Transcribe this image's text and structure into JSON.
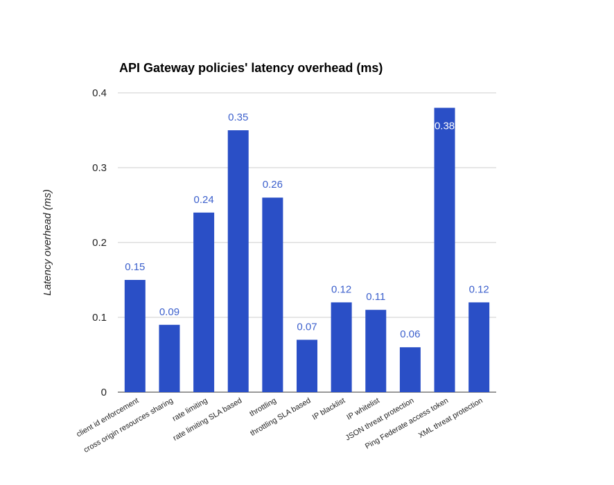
{
  "chart_data": {
    "type": "bar",
    "title": "API Gateway policies' latency overhead (ms)",
    "xlabel": "",
    "ylabel": "Latency overhead (ms)",
    "ylim": [
      0,
      0.4
    ],
    "yticks": [
      0,
      0.1,
      0.2,
      0.3,
      0.4
    ],
    "ytick_labels": [
      "0",
      "0.1",
      "0.2",
      "0.3",
      "0.4"
    ],
    "grid": true,
    "legend": "none",
    "bar_color": "#2a4fc6",
    "label_color": "#3b5fcc",
    "categories": [
      "client id enforcement",
      "cross origin resources sharing",
      "rate limiting",
      "rate limiting SLA based",
      "throttling",
      "throttling SLA based",
      "IP blacklist",
      "IP whitelist",
      "JSON threat protection",
      "Ping Federate access token",
      "XML threat protection"
    ],
    "values": [
      0.15,
      0.09,
      0.24,
      0.35,
      0.26,
      0.07,
      0.12,
      0.11,
      0.06,
      0.38,
      0.12
    ],
    "value_labels": [
      "0.15",
      "0.09",
      "0.24",
      "0.35",
      "0.26",
      "0.07",
      "0.12",
      "0.11",
      "0.06",
      "0.38",
      "0.12"
    ]
  }
}
